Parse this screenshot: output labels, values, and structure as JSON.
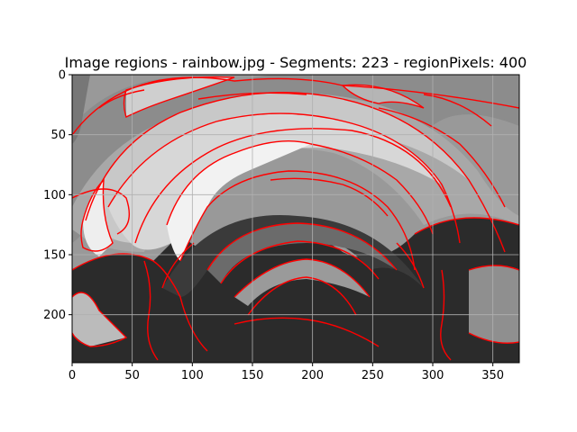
{
  "chart_data": {
    "type": "heatmap",
    "title": "Image regions - rainbow.jpg - Segments: 223 - regionPixels: 400",
    "xlabel": "",
    "ylabel": "",
    "xlim": [
      0,
      372
    ],
    "ylim": [
      240,
      0
    ],
    "grid": true,
    "xticks": [
      0,
      50,
      100,
      150,
      200,
      250,
      300,
      350
    ],
    "yticks": [
      0,
      50,
      100,
      150,
      200
    ],
    "colormap": "gray",
    "boundary_color": "#ff0000"
  }
}
